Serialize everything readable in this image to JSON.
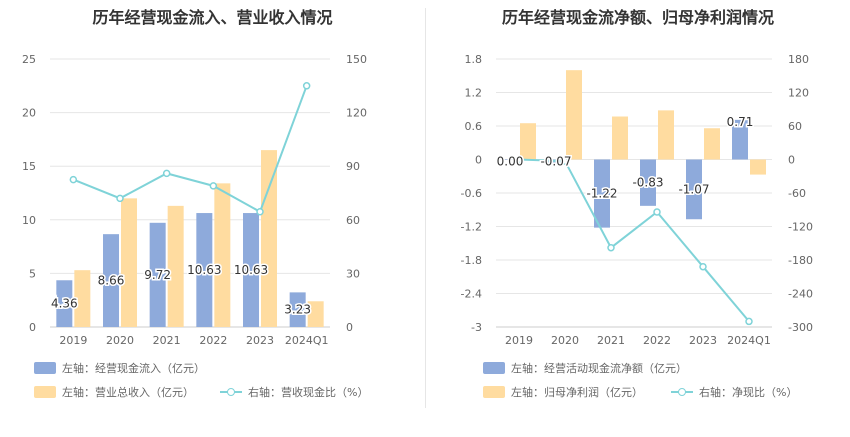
{
  "chart_data": [
    {
      "type": "bar",
      "title": "历年经营现金流入、营业收入情况",
      "categories": [
        "2019",
        "2020",
        "2021",
        "2022",
        "2023",
        "2024Q1"
      ],
      "left_axis": {
        "ticks": [
          "0",
          "5",
          "10",
          "15",
          "20",
          "25"
        ],
        "ylim": [
          0,
          25
        ]
      },
      "right_axis": {
        "ticks": [
          "0",
          "30",
          "60",
          "90",
          "120",
          "150"
        ],
        "ylim": [
          0,
          150
        ]
      },
      "series": [
        {
          "name": "左轴：经营现金流入（亿元）",
          "axis": "left",
          "type": "bar",
          "color": "#8eaadb",
          "values": [
            4.36,
            8.66,
            9.72,
            10.63,
            10.63,
            3.23
          ],
          "labels": [
            "4.36",
            "8.66",
            "9.72",
            "10.63",
            "10.63",
            "3.23"
          ]
        },
        {
          "name": "左轴：营业总收入（亿元）",
          "axis": "left",
          "type": "bar",
          "color": "#ffdca0",
          "values": [
            5.3,
            12.0,
            11.3,
            13.4,
            16.5,
            2.4
          ]
        },
        {
          "name": "右轴：营收现金比（%）",
          "axis": "right",
          "type": "line",
          "color": "#7fd3d8",
          "values": [
            82.5,
            72,
            86,
            79,
            64.5,
            135
          ]
        }
      ],
      "grid": true,
      "legend_position": "bottom-left"
    },
    {
      "type": "bar",
      "title": "历年经营现金流净额、归母净利润情况",
      "categories": [
        "2019",
        "2020",
        "2021",
        "2022",
        "2023",
        "2024Q1"
      ],
      "left_axis": {
        "ticks": [
          "-3",
          "-2.4",
          "-1.8",
          "-1.2",
          "-0.6",
          "0",
          "0.6",
          "1.2",
          "1.8"
        ],
        "ylim": [
          -3,
          1.8
        ]
      },
      "right_axis": {
        "ticks": [
          "-300",
          "-240",
          "-180",
          "-120",
          "-60",
          "0",
          "60",
          "120",
          "180"
        ],
        "ylim": [
          -300,
          180
        ]
      },
      "series": [
        {
          "name": "左轴：经营活动现金流净额（亿元）",
          "axis": "left",
          "type": "bar",
          "color": "#8eaadb",
          "values": [
            0.0,
            -0.07,
            -1.22,
            -0.83,
            -1.07,
            0.71
          ],
          "labels": [
            "0.00",
            "-0.07",
            "-1.22",
            "-0.83",
            "-1.07",
            "0.71"
          ]
        },
        {
          "name": "左轴：归母净利润（亿元）",
          "axis": "left",
          "type": "bar",
          "color": "#ffdca0",
          "values": [
            0.65,
            1.6,
            0.77,
            0.88,
            0.56,
            -0.27
          ]
        },
        {
          "name": "右轴：净现比（%）",
          "axis": "right",
          "type": "line",
          "color": "#7fd3d8",
          "values": [
            0,
            -3,
            -158,
            -94,
            -192,
            -290
          ]
        }
      ],
      "grid": true,
      "legend_position": "bottom-left"
    }
  ]
}
